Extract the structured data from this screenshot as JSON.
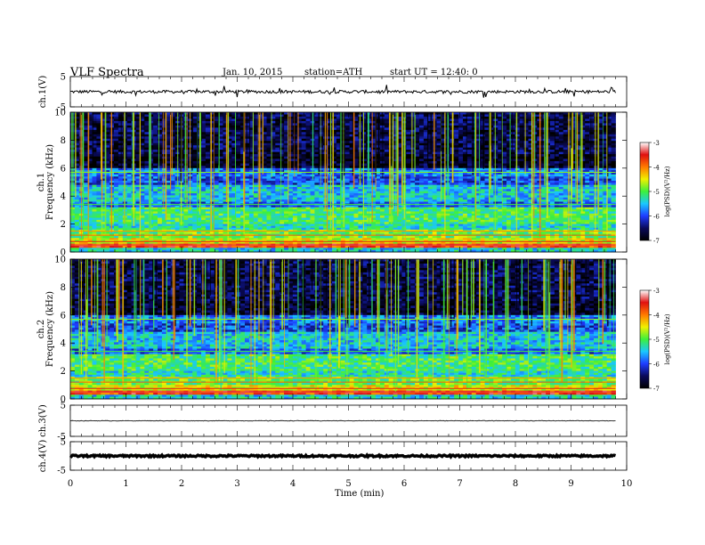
{
  "header": {
    "title": "VLF  Spectra",
    "date": "Jan. 10, 2015",
    "station": "station=ATH",
    "start": "start  UT  =   12:40: 0"
  },
  "chart_data": {
    "type": "heatmap",
    "title": "VLF  Spectra",
    "xlabel": "Time  (min)",
    "xlim": [
      0,
      10
    ],
    "x_ticks": [
      "0",
      "1",
      "2",
      "3",
      "4",
      "5",
      "6",
      "7",
      "8",
      "9",
      "10"
    ],
    "data_end_min": 9.8,
    "panels": [
      {
        "name": "ch.1(V)",
        "kind": "waveform",
        "ylabel": "ch.1(V)",
        "ylim": [
          -5,
          5
        ],
        "y_ticks": [
          "5",
          "-5"
        ],
        "baseline": 0.0,
        "noise_amplitude": 0.5
      },
      {
        "name": "ch.1",
        "kind": "spectrogram",
        "ylabel_lines": [
          "ch.1",
          "Frequency  (kHz)"
        ],
        "ylim": [
          0,
          10
        ],
        "y_ticks": [
          "0",
          "2",
          "4",
          "6",
          "8",
          "10"
        ],
        "colorbar": {
          "label": "log(PSD)(V²/Hz)",
          "range": [
            -7,
            -3
          ],
          "ticks": [
            "-3",
            "-4",
            "-5",
            "-6",
            "-7"
          ]
        }
      },
      {
        "name": "ch.2",
        "kind": "spectrogram",
        "ylabel_lines": [
          "ch.2",
          "Frequency  (kHz)"
        ],
        "ylim": [
          0,
          10
        ],
        "y_ticks": [
          "0",
          "2",
          "4",
          "6",
          "8",
          "10"
        ],
        "colorbar": {
          "label": "log(PSD)(V²/Hz)",
          "range": [
            -7,
            -3
          ],
          "ticks": [
            "-3",
            "-4",
            "-5",
            "-6",
            "-7"
          ]
        }
      },
      {
        "name": "ch.3(V)",
        "kind": "waveform",
        "ylabel": "ch.3(V)",
        "ylim": [
          -5,
          5
        ],
        "y_ticks": [
          "5",
          "-5"
        ],
        "baseline": 0.0,
        "noise_amplitude": 0.1
      },
      {
        "name": "ch.4(V)",
        "kind": "waveform",
        "ylabel": "ch.4(V)",
        "ylim": [
          -5,
          5
        ],
        "y_ticks": [
          "5",
          "-5"
        ],
        "baseline": 0.0,
        "noise_amplitude": 0.3
      }
    ],
    "colormap": [
      "#000000",
      "#0a0a5a",
      "#1e3cff",
      "#19c8ff",
      "#3cf03c",
      "#f0f000",
      "#ff7a00",
      "#e01010",
      "#ffffff"
    ]
  }
}
